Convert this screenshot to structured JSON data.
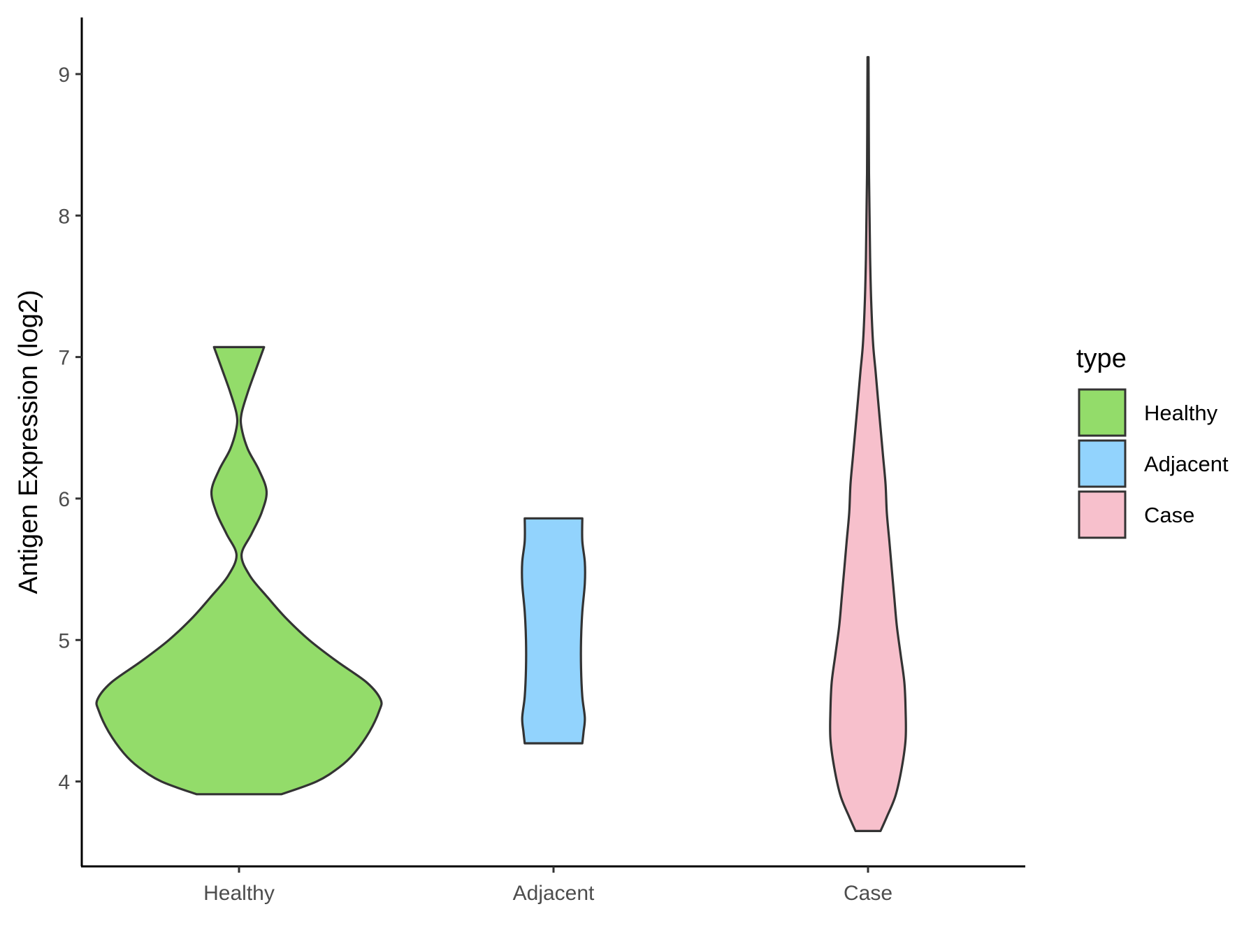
{
  "chart_data": {
    "type": "violin",
    "xlabel": "",
    "ylabel": "Antigen Expression (log2)",
    "ylim": [
      3.4,
      9.4
    ],
    "yticks": [
      4,
      5,
      6,
      7,
      8,
      9
    ],
    "categories": [
      "Healthy",
      "Adjacent",
      "Case"
    ],
    "grid": false,
    "legend": {
      "title": "type",
      "position": "right",
      "items": [
        "Healthy",
        "Adjacent",
        "Case"
      ]
    },
    "series": [
      {
        "name": "Healthy",
        "color": "#93dc6a",
        "min": 3.91,
        "max": 7.07,
        "density": [
          [
            3.91,
            0.34
          ],
          [
            4.0,
            0.62
          ],
          [
            4.1,
            0.8
          ],
          [
            4.2,
            0.92
          ],
          [
            4.35,
            1.04
          ],
          [
            4.5,
            1.12
          ],
          [
            4.58,
            1.13
          ],
          [
            4.7,
            1.02
          ],
          [
            4.85,
            0.78
          ],
          [
            5.0,
            0.56
          ],
          [
            5.15,
            0.38
          ],
          [
            5.3,
            0.23
          ],
          [
            5.45,
            0.09
          ],
          [
            5.6,
            0.02
          ],
          [
            5.75,
            0.1
          ],
          [
            5.9,
            0.18
          ],
          [
            6.05,
            0.22
          ],
          [
            6.2,
            0.16
          ],
          [
            6.35,
            0.07
          ],
          [
            6.5,
            0.02
          ],
          [
            6.6,
            0.02
          ],
          [
            6.75,
            0.07
          ],
          [
            6.9,
            0.13
          ],
          [
            7.07,
            0.2
          ]
        ]
      },
      {
        "name": "Adjacent",
        "color": "#92d3fd",
        "min": 4.27,
        "max": 5.86,
        "density": [
          [
            4.27,
            0.23
          ],
          [
            4.35,
            0.24
          ],
          [
            4.45,
            0.25
          ],
          [
            4.6,
            0.23
          ],
          [
            4.8,
            0.22
          ],
          [
            5.0,
            0.22
          ],
          [
            5.2,
            0.23
          ],
          [
            5.4,
            0.25
          ],
          [
            5.55,
            0.25
          ],
          [
            5.7,
            0.23
          ],
          [
            5.86,
            0.23
          ]
        ]
      },
      {
        "name": "Case",
        "color": "#f7c0cc",
        "min": 3.65,
        "max": 9.12,
        "density": [
          [
            3.65,
            0.1
          ],
          [
            3.75,
            0.15
          ],
          [
            3.9,
            0.22
          ],
          [
            4.1,
            0.27
          ],
          [
            4.3,
            0.3
          ],
          [
            4.5,
            0.3
          ],
          [
            4.7,
            0.29
          ],
          [
            4.9,
            0.26
          ],
          [
            5.1,
            0.23
          ],
          [
            5.3,
            0.21
          ],
          [
            5.5,
            0.19
          ],
          [
            5.7,
            0.17
          ],
          [
            5.9,
            0.15
          ],
          [
            6.1,
            0.14
          ],
          [
            6.3,
            0.12
          ],
          [
            6.5,
            0.1
          ],
          [
            6.7,
            0.08
          ],
          [
            6.9,
            0.06
          ],
          [
            7.1,
            0.04
          ],
          [
            7.4,
            0.025
          ],
          [
            7.7,
            0.017
          ],
          [
            8.0,
            0.012
          ],
          [
            8.3,
            0.008
          ],
          [
            8.6,
            0.006
          ],
          [
            8.9,
            0.005
          ],
          [
            9.12,
            0.004
          ]
        ]
      }
    ]
  }
}
